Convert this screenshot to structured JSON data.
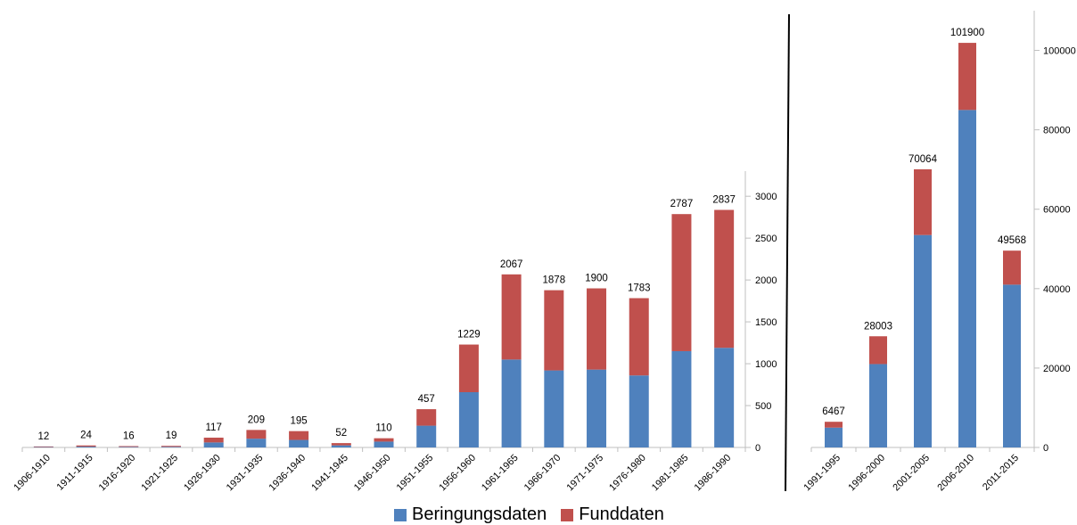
{
  "chart_data": [
    {
      "type": "bar",
      "stacked": true,
      "categories": [
        "1906-1910",
        "1911-1915",
        "1916-1920",
        "1921-1925",
        "1926-1930",
        "1931-1935",
        "1936-1940",
        "1941-1945",
        "1946-1950",
        "1951-1955",
        "1956-1960",
        "1961-1965",
        "1966-1970",
        "1971-1975",
        "1976-1980",
        "1981-1985",
        "1986-1990"
      ],
      "series": [
        {
          "name": "Beringungsdaten",
          "values": [
            5,
            10,
            7,
            8,
            60,
            105,
            90,
            25,
            70,
            260,
            660,
            1050,
            920,
            930,
            860,
            1150,
            1190
          ]
        },
        {
          "name": "Funddaten",
          "values": [
            7,
            14,
            9,
            11,
            57,
            104,
            105,
            27,
            40,
            197,
            569,
            1017,
            958,
            970,
            923,
            1637,
            1647
          ]
        }
      ],
      "totals": [
        "12",
        "24",
        "16",
        "19",
        "117",
        "209",
        "195",
        "52",
        "110",
        "457",
        "1229",
        "2067",
        "1878",
        "1900",
        "1783",
        "2787",
        "2837"
      ],
      "ylim": [
        0,
        3300
      ],
      "yticks": [
        "0",
        "500",
        "1000",
        "1500",
        "2000",
        "2500",
        "3000"
      ],
      "yaxis_side": "right"
    },
    {
      "type": "bar",
      "stacked": true,
      "categories": [
        "1991-1995",
        "1996-2000",
        "2001-2005",
        "2006-2010",
        "2011-2015"
      ],
      "series": [
        {
          "name": "Beringungsdaten",
          "values": [
            5000,
            21000,
            53500,
            85000,
            41000
          ]
        },
        {
          "name": "Funddaten",
          "values": [
            1467,
            7003,
            16564,
            16900,
            8568
          ]
        }
      ],
      "totals": [
        "6467",
        "28003",
        "70064",
        "101900",
        "49568"
      ],
      "ylim": [
        0,
        110000
      ],
      "yticks": [
        "0",
        "20000",
        "40000",
        "60000",
        "80000",
        "100000"
      ],
      "yaxis_side": "right"
    }
  ],
  "legend": {
    "items": [
      {
        "label": "Beringungsdaten",
        "color": "#4F81BD"
      },
      {
        "label": "Funddaten",
        "color": "#C0504D"
      }
    ]
  }
}
